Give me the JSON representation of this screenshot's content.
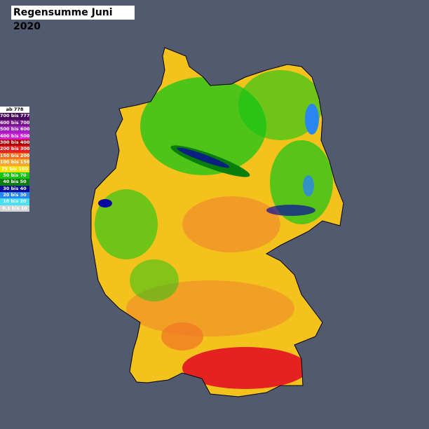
{
  "title": "Regensumme Juni 2020",
  "legend": [
    {
      "label": "ab 778",
      "color": "#ffffff",
      "text_color": "#000000"
    },
    {
      "label": "700 bis 777",
      "color": "#4a0a5c",
      "text_color": "#ffffff"
    },
    {
      "label": "600 bis 700",
      "color": "#76158e",
      "text_color": "#ffffff"
    },
    {
      "label": "500 bis 600",
      "color": "#a21fc2",
      "text_color": "#ffffff"
    },
    {
      "label": "400 bis 500",
      "color": "#d21ed8",
      "text_color": "#ffffff"
    },
    {
      "label": "300 bis 400",
      "color": "#b40000",
      "text_color": "#ffffff"
    },
    {
      "label": "200 bis 300",
      "color": "#e42222",
      "text_color": "#ffffff"
    },
    {
      "label": "150 bis 200",
      "color": "#f07424",
      "text_color": "#ffffff"
    },
    {
      "label": "100 bis 150",
      "color": "#f6a632",
      "text_color": "#ffffff"
    },
    {
      "label": "75 bis 100",
      "color": "#f2e200",
      "text_color": "#ffffff"
    },
    {
      "label": "50 bis 70",
      "color": "#16c416",
      "text_color": "#ffffff"
    },
    {
      "label": "40 bis 50",
      "color": "#0a7e0a",
      "text_color": "#ffffff"
    },
    {
      "label": "30 bis 40",
      "color": "#0a0aa0",
      "text_color": "#ffffff"
    },
    {
      "label": "20 bis 30",
      "color": "#2a86f0",
      "text_color": "#ffffff"
    },
    {
      "label": "10 bis 20",
      "color": "#44e2f2",
      "text_color": "#ffffff"
    },
    {
      "label": "0,1 bis 10",
      "color": "#d4d4d4",
      "text_color": "#ffffff"
    }
  ]
}
